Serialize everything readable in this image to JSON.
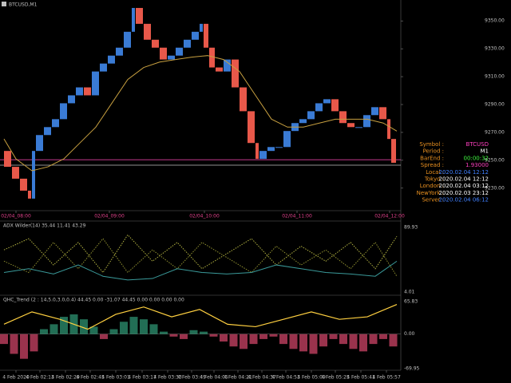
{
  "window_title": "BTCUSD,M1",
  "main": {
    "type": "candles",
    "xlim": [
      0,
      500
    ],
    "ylim": [
      9215,
      9365
    ],
    "up_color": "#3a7bd5",
    "down_color": "#e8584a",
    "ma_color": "#c8a040",
    "x": [
      5,
      15,
      25,
      35,
      40,
      45,
      55,
      65,
      75,
      85,
      95,
      105,
      115,
      125,
      135,
      145,
      155,
      165,
      170,
      180,
      190,
      200,
      210,
      220,
      230,
      240,
      250,
      255,
      262,
      270,
      280,
      290,
      300,
      310,
      320,
      325,
      335,
      345,
      355,
      365,
      375,
      385,
      395,
      405,
      415,
      425,
      435,
      445,
      455,
      465,
      475,
      485,
      490,
      497
    ],
    "values": [
      9256.7,
      9245.3,
      9236.8,
      9228.2,
      9222.5,
      9256.7,
      9268.1,
      9273.8,
      9279.5,
      9290.9,
      9296.6,
      9302.3,
      9296.6,
      9313.7,
      9319.4,
      9325.1,
      9330.8,
      9342.2,
      9359.3,
      9347.9,
      9336.5,
      9330.8,
      9322.3,
      9325.1,
      9330.8,
      9336.5,
      9342.2,
      9347.9,
      9330.8,
      9316.6,
      9313.7,
      9322.3,
      9302.3,
      9285.2,
      9262.4,
      9251,
      9256.7,
      9259.5,
      9259.5,
      9271,
      9276.7,
      9279.5,
      9285.2,
      9290.9,
      9293.8,
      9285.2,
      9276.7,
      9273.8,
      9273.8,
      9282.4,
      9288.1,
      9279.5,
      9265.3,
      9248.2
    ],
    "ma_x": [
      5,
      20,
      40,
      60,
      80,
      100,
      120,
      140,
      160,
      180,
      200,
      220,
      240,
      260,
      280,
      300,
      320,
      340,
      360,
      380,
      400,
      420,
      440,
      460,
      480,
      497
    ],
    "ma": [
      9265.3,
      9251,
      9242.5,
      9245.3,
      9251,
      9262.4,
      9273.8,
      9290.9,
      9308,
      9316.6,
      9320.5,
      9322.3,
      9324,
      9325.1,
      9322.3,
      9313.7,
      9296.6,
      9279.5,
      9273.8,
      9273.8,
      9276.7,
      9279.5,
      9279.5,
      9279.5,
      9276.7,
      9270.9
    ],
    "levels": [
      {
        "value": 9250.4,
        "color": "#e040a0"
      },
      {
        "value": 9246.5,
        "color": "#c0c0c0"
      }
    ],
    "yticks": [
      {
        "value": 9230,
        "label": "9230.00"
      },
      {
        "value": 9250,
        "label": "9250.00"
      },
      {
        "value": 9270,
        "label": "9270.00"
      },
      {
        "value": 9290,
        "label": "9290.00"
      },
      {
        "value": 9310,
        "label": "9310.00"
      },
      {
        "value": 9330,
        "label": "9330.00"
      },
      {
        "value": 9350,
        "label": "9350.00"
      }
    ],
    "xticks": [
      {
        "value": 20,
        "label": "02/04_08:00"
      },
      {
        "value": 137,
        "label": "02/04_09:00"
      },
      {
        "value": 256,
        "label": "02/04_10:00"
      },
      {
        "value": 372,
        "label": "02/04_11:00"
      },
      {
        "value": 488,
        "label": "02/04_12:00"
      }
    ]
  },
  "info": [
    {
      "label": "Symbol :",
      "value": "BTCUSD",
      "color": "#ff40c0"
    },
    {
      "label": "Period :",
      "value": "M1",
      "color": "#ffffff"
    },
    {
      "label": "BarEnd :",
      "value": "00:00:32",
      "color": "#40ff40"
    },
    {
      "label": "Spread :",
      "value": "1.93000",
      "color": "#ff40c0"
    },
    {
      "label": "Local :",
      "value": "2020.02.04 12:12",
      "color": "#4080ff"
    },
    {
      "label": "Tokyo :",
      "value": "2020.02.04 12:12",
      "color": "#ffffff"
    },
    {
      "label": "London :",
      "value": "2020.02.04 03:12",
      "color": "#ffffff"
    },
    {
      "label": "NewYork :",
      "value": "2020.02.03 23:12",
      "color": "#ffffff"
    },
    {
      "label": "Server :",
      "value": "2020.02.04 06:12",
      "color": "#4080ff"
    }
  ],
  "adx": {
    "title": "ADX Wilder(14) 35.44 11.41 43.29",
    "ylim": [
      4.01,
      89.93
    ],
    "yticks": [
      89.93,
      4.01
    ],
    "x": [
      5,
      36,
      67,
      98,
      129,
      160,
      191,
      222,
      253,
      284,
      315,
      346,
      377,
      408,
      439,
      470,
      497
    ],
    "series": [
      {
        "color": "#b0b040",
        "dash": true,
        "values": [
          60,
          75,
          40,
          70,
          30,
          80,
          45,
          70,
          35,
          55,
          75,
          40,
          65,
          45,
          70,
          35,
          78
        ]
      },
      {
        "color": "#909030",
        "dash": true,
        "values": [
          45,
          30,
          70,
          35,
          75,
          30,
          60,
          35,
          70,
          50,
          30,
          65,
          40,
          60,
          35,
          70,
          25
        ]
      },
      {
        "color": "#3a9a9a",
        "dash": false,
        "values": [
          30,
          35,
          28,
          40,
          25,
          20,
          22,
          35,
          30,
          28,
          30,
          40,
          35,
          30,
          28,
          25,
          45
        ]
      }
    ]
  },
  "qhc": {
    "title": "QHC_Trend (2 : 14,5.0,3.0,0.4) 44.45 0.00 -31.07 44.45 0.00 0.00 0.00 0.00",
    "ylim": [
      -69.95,
      65.83
    ],
    "yticks": [
      65.83,
      {
        "value": 0,
        "label": "0.00"
      },
      -69.95
    ],
    "pos_color": "#2a8a6a",
    "neg_color": "#c04060",
    "line_color": "#ffd040",
    "bar_x": [
      5,
      17.5,
      30,
      42.5,
      55,
      67.5,
      80,
      92.5,
      105,
      117.5,
      130,
      142.5,
      155,
      167.5,
      180,
      192.5,
      205,
      217.5,
      230,
      242.5,
      255,
      267.5,
      280,
      292.5,
      305,
      317.5,
      330,
      342.5,
      355,
      367.5,
      380,
      392.5,
      405,
      417.5,
      430,
      442.5,
      455,
      467.5,
      480,
      492.5
    ],
    "bars": [
      -20,
      -40,
      -50,
      -35,
      10,
      20,
      35,
      40,
      30,
      15,
      -10,
      10,
      25,
      35,
      30,
      20,
      5,
      -5,
      -10,
      8,
      5,
      -5,
      -15,
      -25,
      -30,
      -20,
      -10,
      -5,
      -20,
      -30,
      -35,
      -40,
      -25,
      -10,
      -20,
      -30,
      -35,
      -20,
      -10,
      -25
    ],
    "line_x": [
      5,
      40,
      75,
      110,
      145,
      180,
      215,
      250,
      285,
      320,
      355,
      390,
      425,
      460,
      497
    ],
    "line": [
      20,
      45,
      30,
      10,
      40,
      55,
      35,
      50,
      20,
      15,
      30,
      45,
      30,
      35,
      60
    ]
  },
  "time_axis": [
    {
      "value": 20,
      "label": "4 Feb 2020"
    },
    {
      "value": 50,
      "label": "4 Feb 02:13"
    },
    {
      "value": 82,
      "label": "4 Feb 02:29"
    },
    {
      "value": 113,
      "label": "4 Feb 02:45"
    },
    {
      "value": 145,
      "label": "4 Feb 03:01"
    },
    {
      "value": 178,
      "label": "4 Feb 03:17"
    },
    {
      "value": 210,
      "label": "4 Feb 03:33"
    },
    {
      "value": 240,
      "label": "4 Feb 03:49"
    },
    {
      "value": 268,
      "label": "4 Feb 04:05"
    },
    {
      "value": 298,
      "label": "4 Feb 04:21"
    },
    {
      "value": 328,
      "label": "4 Feb 04:37"
    },
    {
      "value": 358,
      "label": "4 Feb 04:53"
    },
    {
      "value": 390,
      "label": "4 Feb 05:09"
    },
    {
      "value": 420,
      "label": "4 Feb 05:25"
    },
    {
      "value": 452,
      "label": "4 Feb 05:41"
    },
    {
      "value": 484,
      "label": "4 Feb 05:57"
    }
  ]
}
